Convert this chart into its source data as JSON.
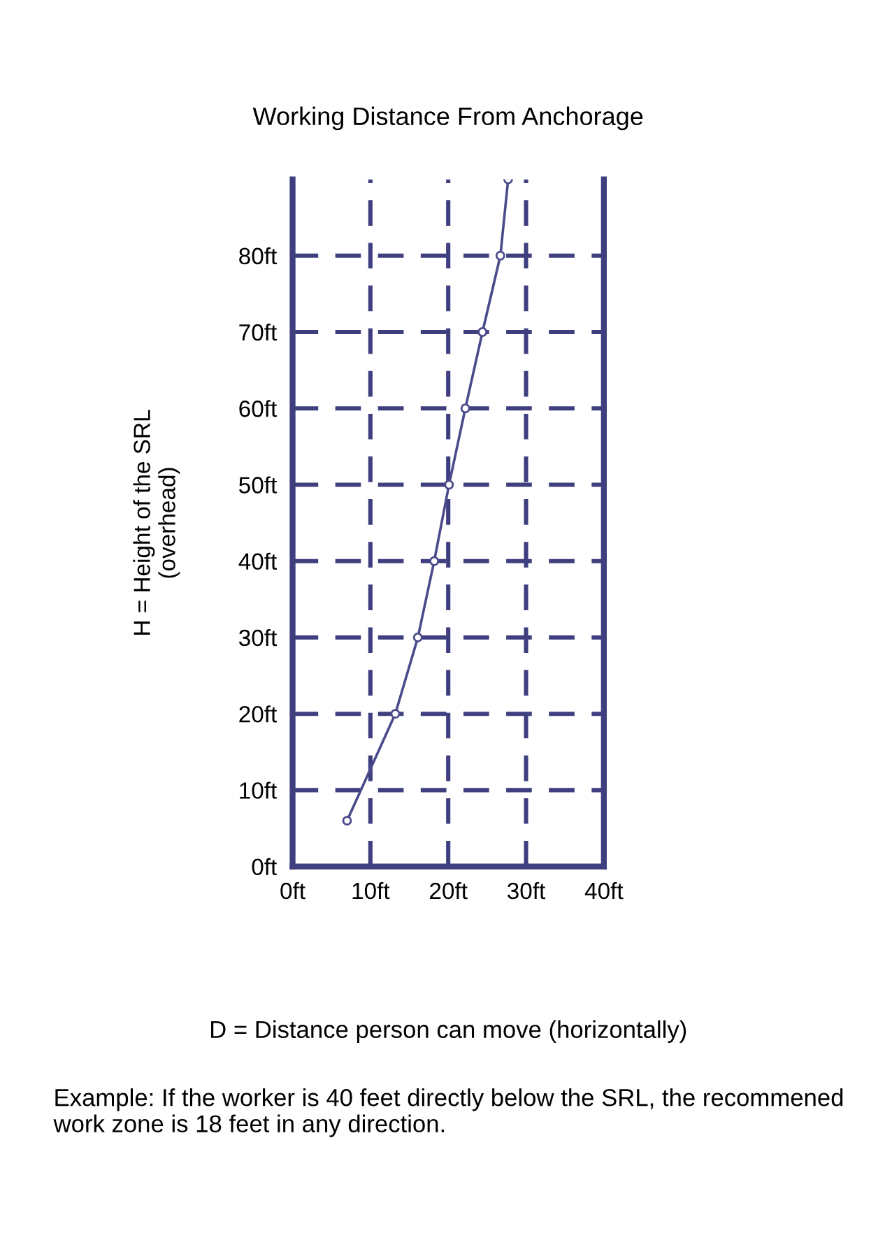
{
  "chart_data": {
    "type": "line",
    "title": "Working Distance From Anchorage",
    "ylabel": "H = Height of the SRL\n(overhead)",
    "xlabel": "D = Distance person can move (horizontally)",
    "annotations": [
      "Example: If the worker is 40 feet directly below the SRL, the recommened work zone is 18 feet in any direction."
    ],
    "series": [
      {
        "color": "#4b4b8c",
        "x": [
          7,
          13.2,
          16.1,
          18.2,
          20.1,
          22.2,
          24.4,
          26.7,
          27.7
        ],
        "values": [
          6,
          20,
          30,
          40,
          50,
          60,
          70,
          80,
          90
        ]
      }
    ],
    "xlim": [
      0,
      40
    ],
    "ylim": [
      0,
      90
    ],
    "xticks": [
      {
        "value": 0,
        "label": "0ft"
      },
      {
        "value": 10,
        "label": "10ft"
      },
      {
        "value": 20,
        "label": "20ft"
      },
      {
        "value": 30,
        "label": "30ft"
      },
      {
        "value": 40,
        "label": "40ft"
      }
    ],
    "yticks": [
      {
        "value": 0,
        "label": "0ft"
      },
      {
        "value": 10,
        "label": "10ft"
      },
      {
        "value": 20,
        "label": "20ft"
      },
      {
        "value": 30,
        "label": "30ft"
      },
      {
        "value": 40,
        "label": "40ft"
      },
      {
        "value": 50,
        "label": "50ft"
      },
      {
        "value": 60,
        "label": "60ft"
      },
      {
        "value": 70,
        "label": "70ft"
      },
      {
        "value": 80,
        "label": "80ft"
      }
    ],
    "grid": true,
    "marker": "circle",
    "line_style": "solid",
    "legend": false
  }
}
